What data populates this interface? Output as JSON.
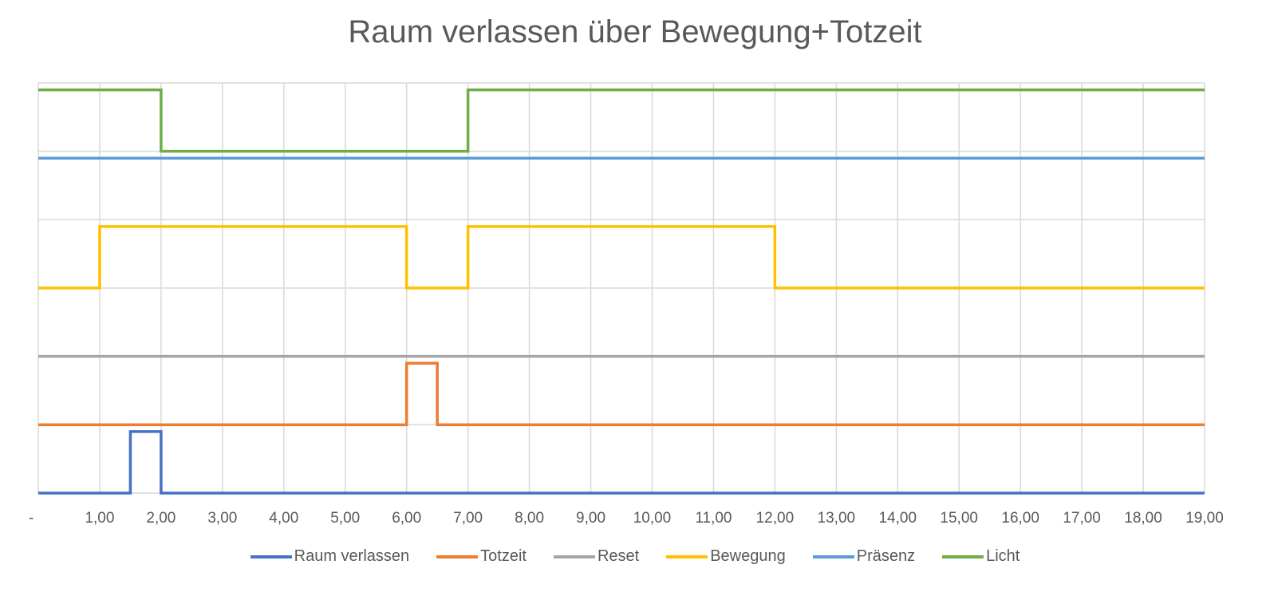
{
  "title": "Raum verlassen über Bewegung+Totzeit",
  "chart_data": {
    "type": "line",
    "step": true,
    "title": "Raum verlassen über Bewegung+Totzeit",
    "xlabel": "",
    "ylabel": "",
    "xlim": [
      0,
      19
    ],
    "ylim": [
      0,
      6
    ],
    "x_tick_labels": [
      "-",
      "1,00",
      "2,00",
      "3,00",
      "4,00",
      "5,00",
      "6,00",
      "7,00",
      "8,00",
      "9,00",
      "10,00",
      "11,00",
      "12,00",
      "13,00",
      "14,00",
      "15,00",
      "16,00",
      "17,00",
      "18,00",
      "19,00"
    ],
    "grid": true,
    "legend": "bottom",
    "series": [
      {
        "name": "Raum verlassen",
        "color": "#4472C4",
        "points": [
          [
            0,
            0
          ],
          [
            1.5,
            0
          ],
          [
            1.5,
            0.9
          ],
          [
            2,
            0.9
          ],
          [
            2,
            0
          ],
          [
            19,
            0
          ]
        ]
      },
      {
        "name": "Totzeit",
        "color": "#ED7D31",
        "points": [
          [
            0,
            1
          ],
          [
            6,
            1
          ],
          [
            6,
            1.9
          ],
          [
            6.5,
            1.9
          ],
          [
            6.5,
            1
          ],
          [
            19,
            1
          ]
        ]
      },
      {
        "name": "Reset",
        "color": "#A5A5A5",
        "points": [
          [
            0,
            2
          ],
          [
            19,
            2
          ]
        ]
      },
      {
        "name": "Bewegung",
        "color": "#FFC000",
        "points": [
          [
            0,
            3
          ],
          [
            1,
            3
          ],
          [
            1,
            3.9
          ],
          [
            6,
            3.9
          ],
          [
            6,
            3
          ],
          [
            7,
            3
          ],
          [
            7,
            3.9
          ],
          [
            12,
            3.9
          ],
          [
            12,
            3
          ],
          [
            19,
            3
          ]
        ]
      },
      {
        "name": "Präsenz",
        "color": "#5B9BD5",
        "points": [
          [
            0,
            4.9
          ],
          [
            19,
            4.9
          ]
        ]
      },
      {
        "name": "Licht",
        "color": "#70AD47",
        "points": [
          [
            0,
            5.9
          ],
          [
            2,
            5.9
          ],
          [
            2,
            5
          ],
          [
            7,
            5
          ],
          [
            7,
            5.9
          ],
          [
            19,
            5.9
          ]
        ]
      }
    ]
  }
}
